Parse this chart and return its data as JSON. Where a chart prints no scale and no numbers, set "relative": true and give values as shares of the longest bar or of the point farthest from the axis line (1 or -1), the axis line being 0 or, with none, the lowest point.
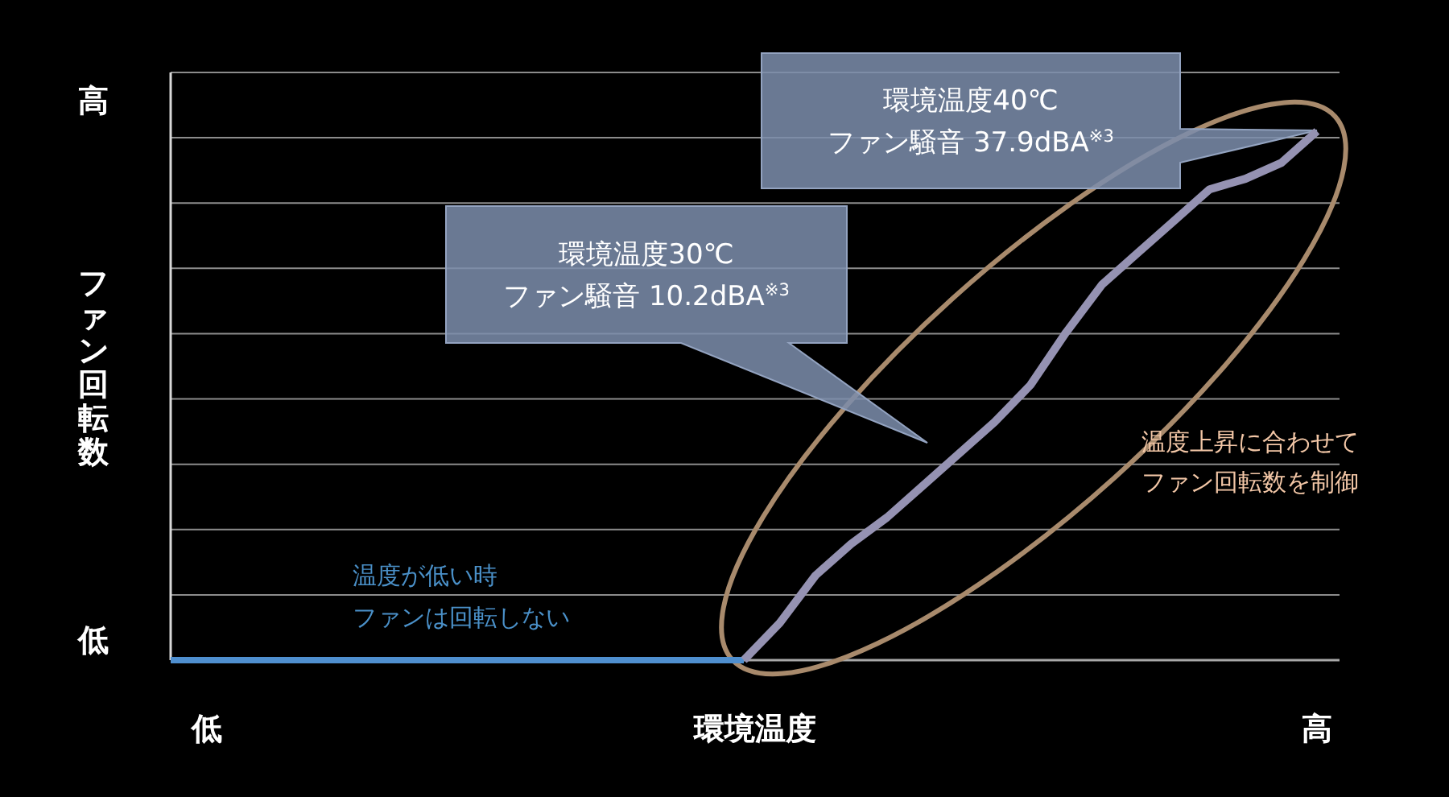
{
  "chart_data": {
    "type": "line",
    "relative": true,
    "xlabel": "環境温度",
    "ylabel": "ファン回転数",
    "categories": [
      null,
      "低",
      null,
      null,
      null,
      null,
      null,
      null,
      null,
      null,
      null,
      null,
      null,
      null,
      null,
      null,
      null,
      null,
      null,
      null,
      null,
      null,
      null,
      null,
      null,
      null,
      null,
      null,
      null,
      null,
      null,
      null,
      "高"
    ],
    "grid": "y",
    "series": [
      {
        "color": "#4f8fcf",
        "values": [
          0,
          0,
          0,
          0,
          0,
          0,
          0,
          0,
          0,
          0,
          0,
          0,
          0,
          0,
          0,
          0,
          0,
          null,
          null,
          null,
          null,
          null,
          null,
          null,
          null,
          null,
          null,
          null,
          null,
          null,
          null,
          null,
          null
        ]
      },
      {
        "color": "#9592b2",
        "values": [
          null,
          null,
          null,
          null,
          null,
          null,
          null,
          null,
          null,
          null,
          null,
          null,
          null,
          null,
          null,
          null,
          0,
          0.07,
          0.16,
          0.22,
          0.27,
          0.33,
          0.39,
          0.45,
          0.52,
          0.62,
          0.71,
          0.77,
          0.83,
          0.89,
          0.91,
          0.94,
          1
        ]
      }
    ],
    "annotations": [
      "環境温度40℃\nファン騒音 37.9dBA$^{※3}$",
      "環境温度30℃\nファン騒音 10.2dBA$^{※3}$",
      "温度が低い時",
      "ファンは回転しない",
      "温度上昇に合わせて",
      "ファン回転数を制御",
      "高",
      "低"
    ]
  }
}
